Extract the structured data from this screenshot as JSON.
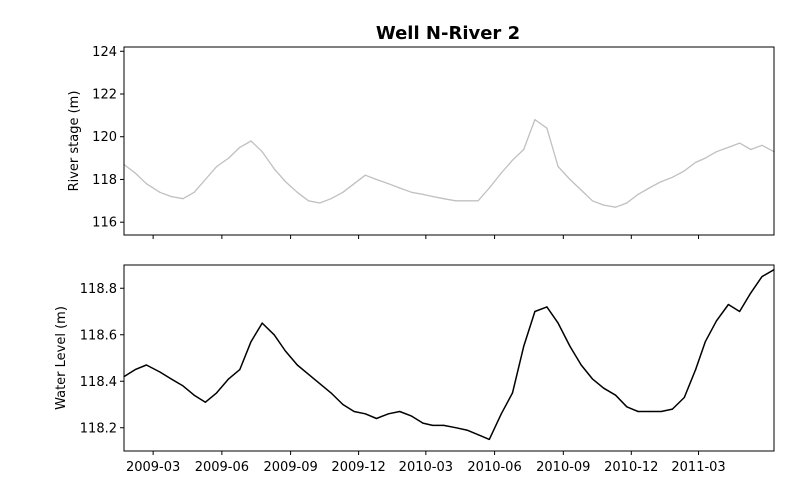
{
  "chart_data": [
    {
      "type": "line",
      "title": "Well N-River 2",
      "xlabel": "",
      "ylabel": "River stage (m)",
      "ylim": [
        115.4,
        124.2
      ],
      "yticks": [
        116,
        118,
        120,
        122,
        124
      ],
      "xlim": [
        "2009-01-21",
        "2011-06-10"
      ],
      "color": "#c0c0c0",
      "series": [
        {
          "x": [
            "2009-01-21",
            "2009-02-05",
            "2009-02-20",
            "2009-03-10",
            "2009-03-25",
            "2009-04-10",
            "2009-04-25",
            "2009-05-10",
            "2009-05-25",
            "2009-06-10",
            "2009-06-25",
            "2009-07-10",
            "2009-07-25",
            "2009-08-10",
            "2009-08-25",
            "2009-09-10",
            "2009-09-25",
            "2009-10-10",
            "2009-10-25",
            "2009-11-10",
            "2009-11-25",
            "2009-12-10",
            "2009-12-25",
            "2010-01-10",
            "2010-01-25",
            "2010-02-10",
            "2010-02-25",
            "2010-03-10",
            "2010-03-25",
            "2010-04-10",
            "2010-04-25",
            "2010-05-10",
            "2010-05-25",
            "2010-06-10",
            "2010-06-25",
            "2010-07-10",
            "2010-07-25",
            "2010-08-10",
            "2010-08-25",
            "2010-09-10",
            "2010-09-25",
            "2010-10-10",
            "2010-10-25",
            "2010-11-10",
            "2010-11-25",
            "2010-12-10",
            "2010-12-25",
            "2011-01-10",
            "2011-01-25",
            "2011-02-10",
            "2011-02-25",
            "2011-03-10",
            "2011-03-25",
            "2011-04-10",
            "2011-04-25",
            "2011-05-10",
            "2011-05-25",
            "2011-06-10"
          ],
          "values": [
            118.7,
            118.3,
            117.8,
            117.4,
            117.2,
            117.1,
            117.4,
            118.0,
            118.6,
            119.0,
            119.5,
            119.8,
            119.3,
            118.5,
            117.9,
            117.4,
            117.0,
            116.9,
            117.1,
            117.4,
            117.8,
            118.2,
            118.0,
            117.8,
            117.6,
            117.4,
            117.3,
            117.2,
            117.1,
            117.0,
            117.0,
            117.0,
            117.6,
            118.3,
            118.9,
            119.4,
            120.8,
            120.4,
            118.6,
            118.0,
            117.5,
            117.0,
            116.8,
            116.7,
            116.9,
            117.3,
            117.6,
            117.9,
            118.1,
            118.4,
            118.8,
            119.0,
            119.3,
            119.5,
            119.7,
            119.4,
            119.6,
            119.3
          ]
        }
      ]
    },
    {
      "type": "line",
      "title": "",
      "xlabel": "",
      "ylabel": "Water Level (m)",
      "ylim": [
        118.1,
        118.9
      ],
      "yticks": [
        118.2,
        118.4,
        118.6,
        118.8
      ],
      "xlim": [
        "2009-01-21",
        "2011-06-10"
      ],
      "xticks": [
        "2009-03",
        "2009-06",
        "2009-09",
        "2009-12",
        "2010-03",
        "2010-06",
        "2010-09",
        "2010-12",
        "2011-03"
      ],
      "color": "#000000",
      "series": [
        {
          "x": [
            "2009-01-21",
            "2009-02-05",
            "2009-02-20",
            "2009-03-10",
            "2009-03-25",
            "2009-04-10",
            "2009-04-25",
            "2009-05-10",
            "2009-05-25",
            "2009-06-10",
            "2009-06-25",
            "2009-07-10",
            "2009-07-25",
            "2009-08-10",
            "2009-08-25",
            "2009-09-10",
            "2009-09-25",
            "2009-10-10",
            "2009-10-25",
            "2009-11-10",
            "2009-11-25",
            "2009-12-10",
            "2009-12-25",
            "2010-01-10",
            "2010-01-25",
            "2010-02-10",
            "2010-02-25",
            "2010-03-10",
            "2010-03-25",
            "2010-04-10",
            "2010-04-25",
            "2010-05-10",
            "2010-05-25",
            "2010-06-10",
            "2010-06-25",
            "2010-07-10",
            "2010-07-25",
            "2010-08-10",
            "2010-08-25",
            "2010-09-10",
            "2010-09-25",
            "2010-10-10",
            "2010-10-25",
            "2010-11-10",
            "2010-11-25",
            "2010-12-10",
            "2010-12-25",
            "2011-01-10",
            "2011-01-25",
            "2011-02-10",
            "2011-02-25",
            "2011-03-10",
            "2011-03-25",
            "2011-04-10",
            "2011-04-25",
            "2011-05-10",
            "2011-05-25",
            "2011-06-10"
          ],
          "values": [
            118.42,
            118.45,
            118.47,
            118.44,
            118.41,
            118.38,
            118.34,
            118.31,
            118.35,
            118.41,
            118.45,
            118.57,
            118.65,
            118.6,
            118.53,
            118.47,
            118.43,
            118.39,
            118.35,
            118.3,
            118.27,
            118.26,
            118.24,
            118.26,
            118.27,
            118.25,
            118.22,
            118.21,
            118.21,
            118.2,
            118.19,
            118.17,
            118.15,
            118.26,
            118.35,
            118.55,
            118.7,
            118.72,
            118.65,
            118.55,
            118.47,
            118.41,
            118.37,
            118.34,
            118.29,
            118.27,
            118.27,
            118.27,
            118.28,
            118.33,
            118.45,
            118.57,
            118.66,
            118.73,
            118.7,
            118.78,
            118.85,
            118.88
          ]
        }
      ]
    }
  ]
}
